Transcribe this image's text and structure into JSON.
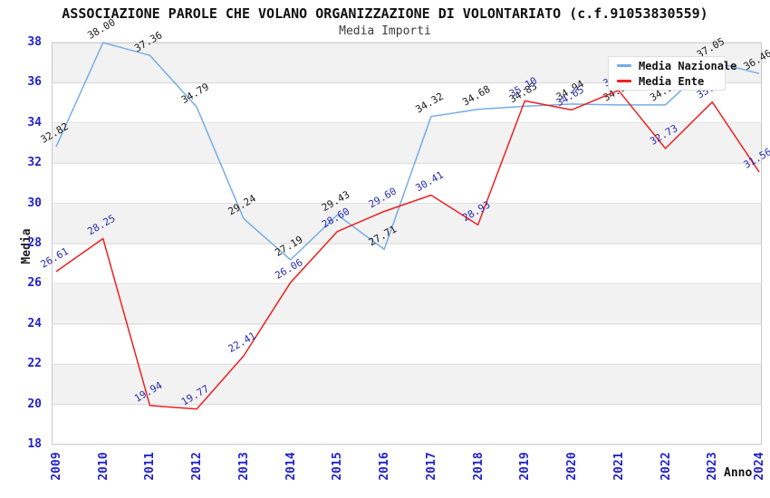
{
  "header": {
    "title": "ASSOCIAZIONE PAROLE CHE VOLANO ORGANIZZAZIONE DI VOLONTARIATO (c.f.91053830559)",
    "subtitle": "Media Importi"
  },
  "chart_data": {
    "type": "line",
    "x": [
      "2009",
      "2010",
      "2011",
      "2012",
      "2013",
      "2014",
      "2015",
      "2016",
      "2017",
      "2018",
      "2019",
      "2020",
      "2021",
      "2022",
      "2023",
      "2024"
    ],
    "xlabel": "Anno",
    "ylabel": "Media",
    "ylim": [
      18,
      38
    ],
    "ytick_step": 2,
    "grid": "horizontal-bands-alternating",
    "legend_position": "top-right",
    "series": [
      {
        "name": "Media Nazionale",
        "color": "#76ace6",
        "label_color": "#1a1a1a",
        "values": [
          32.82,
          38.0,
          37.36,
          34.79,
          29.24,
          27.19,
          29.43,
          27.71,
          34.32,
          34.68,
          34.83,
          34.94,
          34.9,
          34.9,
          37.05,
          36.46
        ]
      },
      {
        "name": "Media Ente",
        "color": "#ee2020",
        "label_color": "#2a2ab0",
        "values": [
          26.61,
          28.25,
          19.94,
          19.77,
          22.41,
          26.06,
          28.6,
          29.6,
          30.41,
          28.93,
          35.1,
          34.65,
          35.62,
          32.73,
          35.04,
          31.56
        ]
      }
    ]
  },
  "colors": {
    "axis_tick": "#2222cc",
    "band_gray": "#f2f2f2",
    "gridline": "#d9d9d9",
    "plot_border": "#c9c9c9"
  }
}
